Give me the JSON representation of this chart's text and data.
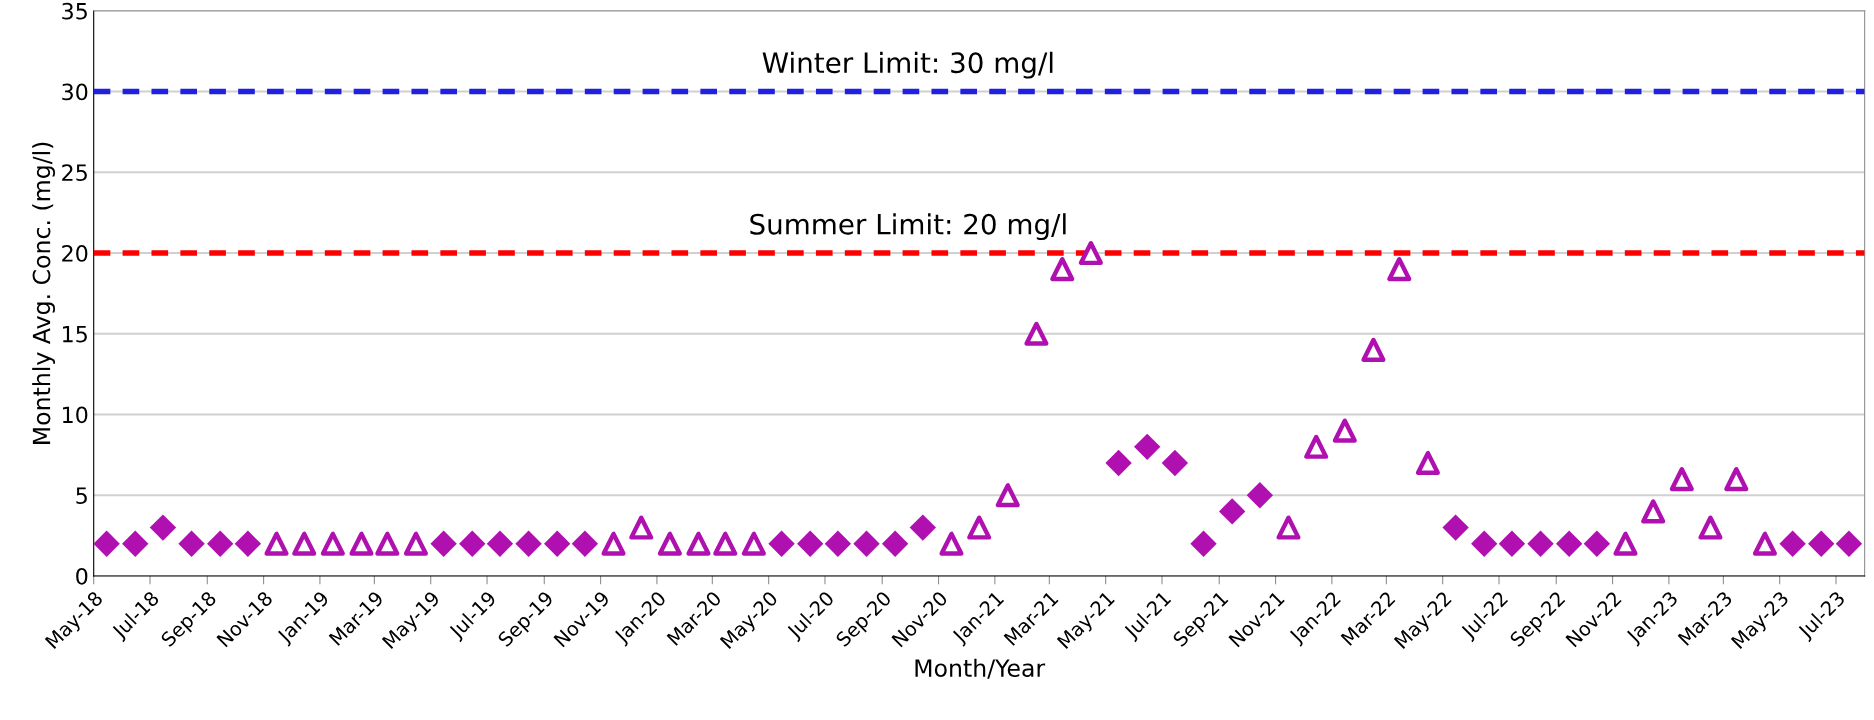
{
  "chart_data": {
    "type": "scatter",
    "xlabel": "Month/Year",
    "ylabel": "Monthly Avg. Conc. (mg/l)",
    "x": [
      "2018-05-15",
      "2018-06-15",
      "2018-07-15",
      "2018-08-15",
      "2018-09-15",
      "2018-10-15",
      "2018-11-15",
      "2018-12-15",
      "2019-01-15",
      "2019-02-15",
      "2019-03-15",
      "2019-04-15",
      "2019-05-15",
      "2019-06-15",
      "2019-07-15",
      "2019-08-15",
      "2019-09-15",
      "2019-10-15",
      "2019-11-15",
      "2019-12-15",
      "2020-01-15",
      "2020-02-15",
      "2020-03-15",
      "2020-04-15",
      "2020-05-15",
      "2020-06-15",
      "2020-07-15",
      "2020-08-15",
      "2020-09-15",
      "2020-10-15",
      "2020-11-15",
      "2020-12-15",
      "2021-01-15",
      "2021-02-15",
      "2021-03-15",
      "2021-04-15",
      "2021-05-15",
      "2021-06-15",
      "2021-07-15",
      "2021-08-15",
      "2021-09-15",
      "2021-10-15",
      "2021-11-15",
      "2021-12-15",
      "2022-01-15",
      "2022-02-15",
      "2022-03-15",
      "2022-04-15",
      "2022-05-15",
      "2022-06-15",
      "2022-07-15",
      "2022-08-15",
      "2022-09-15",
      "2022-10-15",
      "2022-11-15",
      "2022-12-15",
      "2023-01-15",
      "2023-02-15",
      "2023-03-15",
      "2023-04-15",
      "2023-05-15",
      "2023-06-15",
      "2023-07-15"
    ],
    "series": [
      {
        "color": "#b010b0",
        "marker": "diamond",
        "values": [
          2,
          2,
          3,
          2,
          2,
          2,
          null,
          null,
          null,
          null,
          null,
          null,
          2,
          2,
          2,
          2,
          2,
          2,
          null,
          null,
          null,
          null,
          null,
          null,
          2,
          2,
          2,
          2,
          2,
          3,
          null,
          null,
          null,
          null,
          null,
          null,
          7,
          8,
          7,
          2,
          4,
          5,
          null,
          null,
          null,
          null,
          null,
          null,
          3,
          2,
          2,
          2,
          2,
          2,
          null,
          null,
          null,
          null,
          null,
          null,
          2,
          2,
          2
        ]
      },
      {
        "color": "#b010b0",
        "marker": "triangle",
        "values": [
          null,
          null,
          null,
          null,
          null,
          null,
          2,
          2,
          2,
          2,
          2,
          2,
          null,
          null,
          null,
          null,
          null,
          null,
          2,
          3,
          2,
          2,
          2,
          2,
          null,
          null,
          null,
          null,
          null,
          null,
          2,
          3,
          5,
          15,
          19,
          20,
          null,
          null,
          null,
          null,
          null,
          null,
          3,
          8,
          9,
          14,
          19,
          7,
          null,
          null,
          null,
          null,
          null,
          null,
          2,
          4,
          6,
          3,
          6,
          2,
          null,
          null,
          null
        ]
      }
    ],
    "xlim": [
      "2018-05-01",
      "2023-08-01"
    ],
    "xticks": [
      {
        "value": "2018-05-01",
        "label": "May-18"
      },
      {
        "value": "2018-07-01",
        "label": "Jul-18"
      },
      {
        "value": "2018-09-01",
        "label": "Sep-18"
      },
      {
        "value": "2018-11-01",
        "label": "Nov-18"
      },
      {
        "value": "2019-01-01",
        "label": "Jan-19"
      },
      {
        "value": "2019-03-01",
        "label": "Mar-19"
      },
      {
        "value": "2019-05-01",
        "label": "May-19"
      },
      {
        "value": "2019-07-01",
        "label": "Jul-19"
      },
      {
        "value": "2019-09-01",
        "label": "Sep-19"
      },
      {
        "value": "2019-11-01",
        "label": "Nov-19"
      },
      {
        "value": "2020-01-01",
        "label": "Jan-20"
      },
      {
        "value": "2020-03-01",
        "label": "Mar-20"
      },
      {
        "value": "2020-05-01",
        "label": "May-20"
      },
      {
        "value": "2020-07-01",
        "label": "Jul-20"
      },
      {
        "value": "2020-09-01",
        "label": "Sep-20"
      },
      {
        "value": "2020-11-01",
        "label": "Nov-20"
      },
      {
        "value": "2021-01-01",
        "label": "Jan-21"
      },
      {
        "value": "2021-03-01",
        "label": "Mar-21"
      },
      {
        "value": "2021-05-01",
        "label": "May-21"
      },
      {
        "value": "2021-07-01",
        "label": "Jul-21"
      },
      {
        "value": "2021-09-01",
        "label": "Sep-21"
      },
      {
        "value": "2021-11-01",
        "label": "Nov-21"
      },
      {
        "value": "2022-01-01",
        "label": "Jan-22"
      },
      {
        "value": "2022-03-01",
        "label": "Mar-22"
      },
      {
        "value": "2022-05-01",
        "label": "May-22"
      },
      {
        "value": "2022-07-01",
        "label": "Jul-22"
      },
      {
        "value": "2022-09-01",
        "label": "Sep-22"
      },
      {
        "value": "2022-11-01",
        "label": "Nov-22"
      },
      {
        "value": "2023-01-01",
        "label": "Jan-23"
      },
      {
        "value": "2023-03-01",
        "label": "Mar-23"
      },
      {
        "value": "2023-05-01",
        "label": "May-23"
      },
      {
        "value": "2023-07-01",
        "label": "Jul-23"
      }
    ],
    "ylim": [
      0,
      35
    ],
    "yticks": [
      0,
      5,
      10,
      15,
      20,
      25,
      30,
      35
    ],
    "grid": "y",
    "legend": false,
    "ref_lines": [
      {
        "axis": "y",
        "value": 30,
        "label": "Winter Limit: 30 mg/l",
        "color": "#2020e0",
        "line_style": "dashed"
      },
      {
        "axis": "y",
        "value": 20,
        "label": "Summer Limit: 20 mg/l",
        "color": "#ff0000",
        "line_style": "dashed"
      }
    ]
  }
}
